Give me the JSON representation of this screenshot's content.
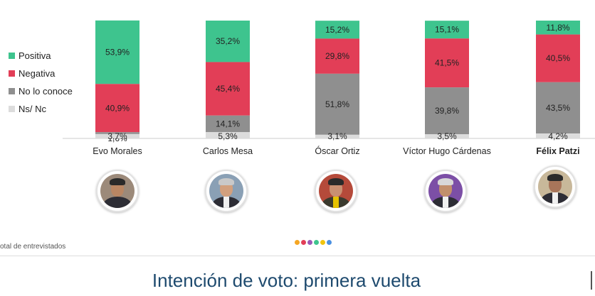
{
  "chart_data": {
    "type": "bar",
    "stacked": true,
    "categories": [
      "Evo Morales",
      "Carlos Mesa",
      "Óscar Ortiz",
      "Víctor Hugo Cárdenas",
      "Félix Patzi"
    ],
    "series": [
      {
        "name": "Positiva",
        "color": "#3ec48e",
        "values": [
          53.9,
          35.2,
          15.2,
          15.1,
          11.8
        ],
        "labels": [
          "53,9%",
          "35,2%",
          "15,2%",
          "15,1%",
          "11,8%"
        ]
      },
      {
        "name": "Negativa",
        "color": "#e23e57",
        "values": [
          40.9,
          45.4,
          29.8,
          41.5,
          40.5
        ],
        "labels": [
          "40,9%",
          "45,4%",
          "29,8%",
          "41,5%",
          "40,5%"
        ]
      },
      {
        "name": "No lo conoce",
        "color": "#8f8f8f",
        "values": [
          1.6,
          14.1,
          51.8,
          39.8,
          43.5
        ],
        "labels": [
          "1,6%",
          "14,1%",
          "51,8%",
          "39,8%",
          "43,5%"
        ]
      },
      {
        "name": "Ns/ Nc",
        "color": "#dcdcdc",
        "values": [
          3.7,
          5.3,
          3.1,
          3.5,
          4.2
        ],
        "labels": [
          "3,7%",
          "5,3%",
          "3,1%",
          "3,5%",
          "4,2%"
        ]
      }
    ],
    "legend_position": "left",
    "grid": false
  },
  "footnote": "otal de entrevistados",
  "page_dots": [
    "#f5a623",
    "#e23e57",
    "#9b59b6",
    "#3ec48e",
    "#f1c40f",
    "#4a90e2"
  ],
  "bottom_title": "Intención de voto: primera vuelta"
}
